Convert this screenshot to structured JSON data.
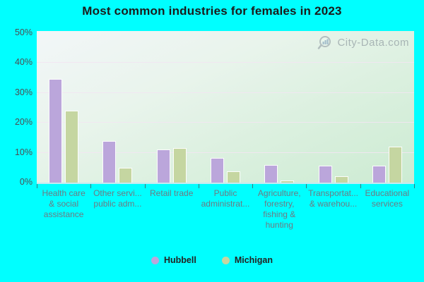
{
  "title": "Most common industries for females in 2023",
  "watermark": "City-Data.com",
  "legend": [
    {
      "label": "Hubbell",
      "color": "#bba6db"
    },
    {
      "label": "Michigan",
      "color": "#c5d6a1"
    }
  ],
  "colors": {
    "background": "#00ffff",
    "hubbell_bar": "#bba6db",
    "michigan_bar": "#c5d6a1",
    "plot_gradient_top": "#f2f6f8",
    "plot_gradient_bottom": "#ccebd2",
    "gridline": "#f2e6f2",
    "axis_tick": "#35797d",
    "y_label_text": "#4c4c52",
    "x_label_text": "#6e7a82",
    "title_text": "#1b1b1b",
    "watermark_text": "#79848e"
  },
  "chart_data": {
    "type": "bar",
    "title": "Most common industries for females in 2023",
    "xlabel": "",
    "ylabel": "",
    "ylim": [
      0,
      50
    ],
    "grid": true,
    "legend_position": "bottom",
    "yticks": [
      "0%",
      "10%",
      "20%",
      "30%",
      "40%",
      "50%"
    ],
    "categories": [
      "Health care & social assistance",
      "Other servi... public adm...",
      "Retail trade",
      "Public administrat...",
      "Agriculture, forestry, fishing & hunting",
      "Transportat... & warehou...",
      "Educational services"
    ],
    "category_display_lines": [
      [
        "Health care",
        "& social",
        "assistance"
      ],
      [
        "Other servi...",
        "public adm..."
      ],
      [
        "Retail trade"
      ],
      [
        "Public",
        "administrat..."
      ],
      [
        "Agriculture,",
        "forestry,",
        "fishing &",
        "hunting"
      ],
      [
        "Transportat...",
        "& warehou..."
      ],
      [
        "Educational",
        "services"
      ]
    ],
    "series": [
      {
        "name": "Hubbell",
        "color": "#bba6db",
        "values": [
          34.6,
          14.0,
          11.0,
          8.2,
          5.9,
          5.7,
          5.7
        ]
      },
      {
        "name": "Michigan",
        "color": "#c5d6a1",
        "values": [
          24.0,
          5.0,
          11.5,
          3.7,
          0.6,
          2.2,
          12.1
        ]
      }
    ]
  }
}
